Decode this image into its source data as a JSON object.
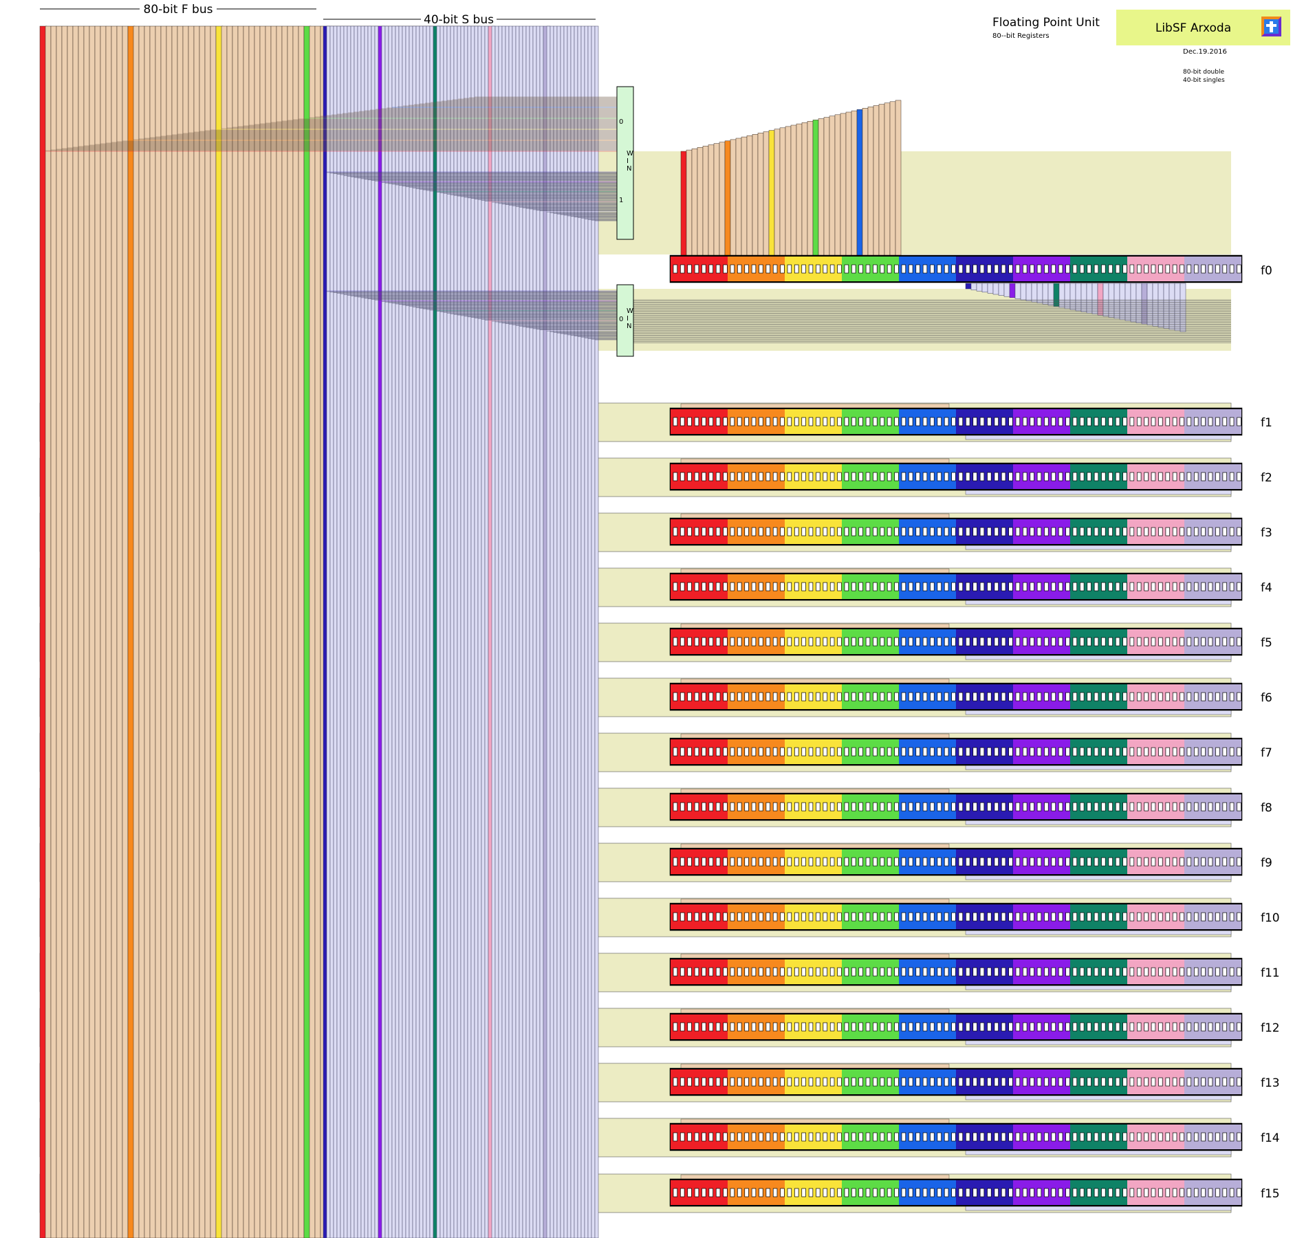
{
  "title": {
    "main": "Floating Point Unit",
    "sub": "80--bit Registers",
    "date": "Dec.19.2016",
    "notes": [
      "80-bit double",
      "40-bit singles"
    ]
  },
  "logo": {
    "text": "LibSF Arxoda",
    "icon": "cross-icon"
  },
  "buses": {
    "f_bus_label": "80-bit F bus",
    "s_bus_label": "40-bit S bus"
  },
  "mux": {
    "letters": [
      "W",
      "I",
      "N"
    ],
    "upper_inputs": [
      "0",
      "1"
    ],
    "lower_inputs": [
      "0"
    ]
  },
  "registers": [
    "f0",
    "f1",
    "f2",
    "f3",
    "f4",
    "f5",
    "f6",
    "f7",
    "f8",
    "f9",
    "f10",
    "f11",
    "f12",
    "f13",
    "f14",
    "f15"
  ],
  "colors": {
    "f_groups": [
      "#ef1f26",
      "#f7891e",
      "#f9e33a",
      "#5ddc46",
      "#1a64e8"
    ],
    "s_groups": [
      "#2a1bb2",
      "#8a1ce8",
      "#0f8266",
      "#f2a6c3",
      "#b7aed8"
    ],
    "f_wire": "#eccfb0",
    "s_wire": "#dcdcf4",
    "panel_bg": "#ececc3",
    "mux_fill": "#d5f7d5",
    "logo_bg": "#e8f68a"
  }
}
